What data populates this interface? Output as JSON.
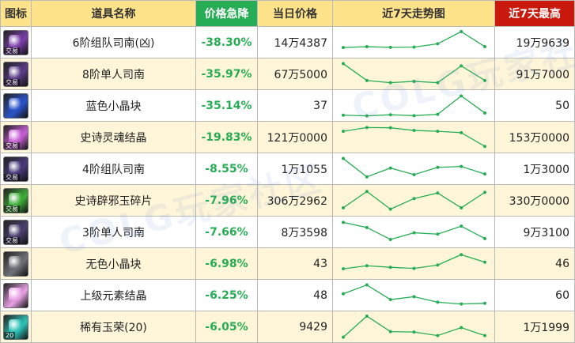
{
  "header": {
    "icon": "图标",
    "name": "道具名称",
    "drop": "价格急降",
    "price": "当日价格",
    "trend": "近7天走势图",
    "max": "近7天最高"
  },
  "colors": {
    "header_bg": "#ffe38a",
    "drop_header_bg": "#27ad55",
    "max_header_bg": "#c8190c",
    "drop_text": "#27ad55",
    "trend_line": "#27ad55",
    "row_alt_bg": "#fff6d9"
  },
  "watermark": "COLG玩家社区",
  "rows": [
    {
      "icon": "purple-gem-icon",
      "icon_color": "#7a3fa8",
      "tag": "交易",
      "name": "6阶组队司南(凶)",
      "drop": "-38.30%",
      "price": "14万4387",
      "max": "19万9639",
      "trend": [
        0.28,
        0.32,
        0.29,
        0.3,
        0.45,
        1.0,
        0.32
      ]
    },
    {
      "icon": "compass-icon",
      "icon_color": "#5a3c86",
      "tag": "交易",
      "name": "8阶单人司南",
      "drop": "-35.97%",
      "price": "67万5000",
      "max": "91万7000",
      "trend": [
        0.98,
        0.22,
        0.12,
        0.18,
        0.12,
        0.88,
        0.22
      ]
    },
    {
      "icon": "blue-crystal-icon",
      "icon_color": "#2b54c9",
      "tag": "",
      "name": "蓝色小晶块",
      "drop": "-35.14%",
      "price": "37",
      "max": "50",
      "trend": [
        0.08,
        0.05,
        0.1,
        0.06,
        0.12,
        0.95,
        0.18
      ]
    },
    {
      "icon": "soul-crystal-icon",
      "icon_color": "#c85fd6",
      "tag": "交易",
      "name": "史诗灵魂结晶",
      "drop": "-19.83%",
      "price": "121万0000",
      "max": "153万0000",
      "trend": [
        0.78,
        0.95,
        0.94,
        0.82,
        0.78,
        0.72,
        0.1
      ]
    },
    {
      "icon": "compass-icon",
      "icon_color": "#4a3a7a",
      "tag": "交易",
      "name": "4阶组队司南",
      "drop": "-8.55%",
      "price": "1万1055",
      "max": "1万3000",
      "trend": [
        0.98,
        0.15,
        0.55,
        0.25,
        0.58,
        0.62,
        0.28
      ]
    },
    {
      "icon": "green-jade-icon",
      "icon_color": "#3fae3a",
      "tag": "交易",
      "name": "史诗辟邪玉碎片",
      "drop": "-7.96%",
      "price": "306万2962",
      "max": "330万0000",
      "trend": [
        0.18,
        0.92,
        0.12,
        0.6,
        0.85,
        0.18,
        0.88
      ]
    },
    {
      "icon": "compass-icon",
      "icon_color": "#4c3f6e",
      "tag": "交易",
      "name": "3阶单人司南",
      "drop": "-7.66%",
      "price": "8万3598",
      "max": "9万3100",
      "trend": [
        0.95,
        0.72,
        0.18,
        0.48,
        0.42,
        0.78,
        0.22
      ]
    },
    {
      "icon": "colorless-crystal-icon",
      "icon_color": "#6f7379",
      "tag": "",
      "name": "无色小晶块",
      "drop": "-6.98%",
      "price": "43",
      "max": "46",
      "trend": [
        0.28,
        0.42,
        0.35,
        0.3,
        0.45,
        0.92,
        0.58
      ]
    },
    {
      "icon": "pink-orb-icon",
      "icon_color": "#e9a1e6",
      "tag": "",
      "name": "上级元素结晶",
      "drop": "-6.25%",
      "price": "48",
      "max": "60",
      "trend": [
        0.58,
        0.98,
        0.32,
        0.45,
        0.2,
        0.12,
        0.15
      ]
    },
    {
      "icon": "jade-glory-icon",
      "icon_color": "#2fc3b8",
      "tag": "20",
      "name": "稀有玉荣(20)",
      "drop": "-6.05%",
      "price": "9429",
      "max": "1万1999",
      "trend": [
        0.05,
        1.0,
        0.3,
        0.28,
        0.12,
        0.48,
        0.12
      ]
    }
  ]
}
